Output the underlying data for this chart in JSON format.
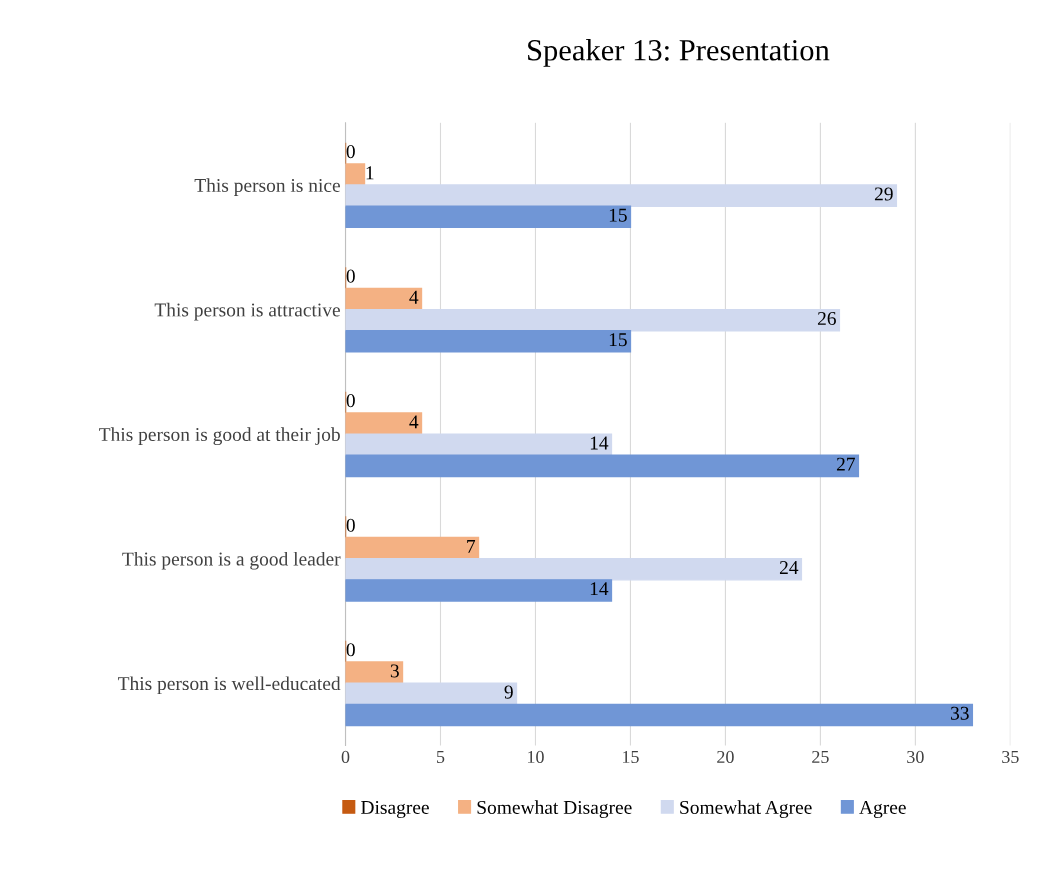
{
  "chart_data": {
    "type": "bar",
    "orientation": "horizontal",
    "title": "Speaker 13: Presentation",
    "categories": [
      "This person is nice",
      "This person is attractive",
      "This person is good at their job",
      "This person is a good leader",
      "This person is well-educated"
    ],
    "series": [
      {
        "name": "Disagree",
        "color": "#c55a11",
        "values": [
          0,
          0,
          0,
          0,
          0
        ]
      },
      {
        "name": "Somewhat Disagree",
        "color": "#f4b183",
        "values": [
          1,
          4,
          4,
          7,
          3
        ]
      },
      {
        "name": "Somewhat Agree",
        "color": "#d0d9ef",
        "values": [
          29,
          26,
          14,
          24,
          9
        ]
      },
      {
        "name": "Agree",
        "color": "#7096d6",
        "values": [
          15,
          15,
          27,
          14,
          33
        ]
      }
    ],
    "xlim": [
      0,
      35
    ],
    "xticks": [
      0,
      5,
      10,
      15,
      20,
      25,
      30,
      35
    ],
    "grid": "x",
    "legend": "bottom",
    "data_labels": true
  }
}
